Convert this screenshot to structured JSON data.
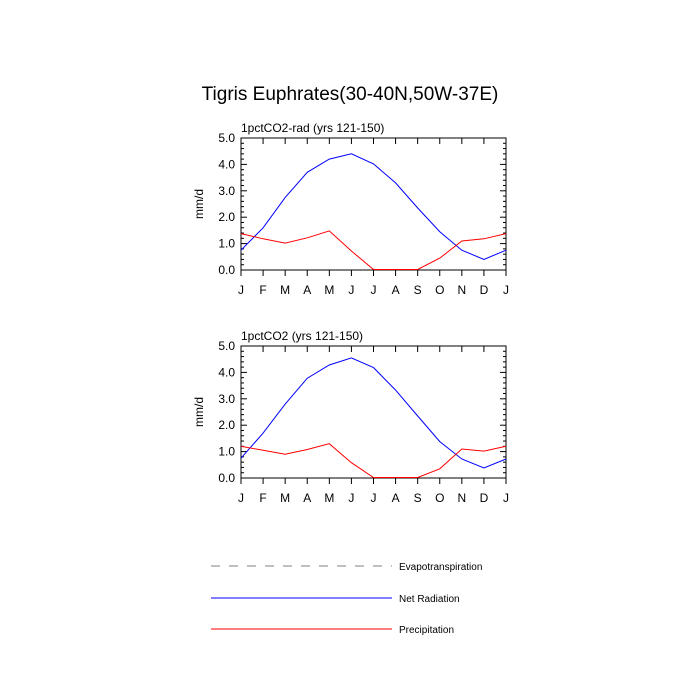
{
  "title": "Tigris Euphrates(30-40N,50W-37E)",
  "colors": {
    "net_radiation": "#0000ff",
    "precipitation": "#ff0000",
    "evapotranspiration": "#808080"
  },
  "legend": [
    {
      "label": "Evapotranspiration",
      "color": "#808080",
      "dash": true
    },
    {
      "label": "Net Radiation",
      "color": "#0000ff",
      "dash": false
    },
    {
      "label": "Precipitation",
      "color": "#ff0000",
      "dash": false
    }
  ],
  "chart_data": [
    {
      "type": "line",
      "title": "1pctCO2-rad (yrs 121-150)",
      "ylabel": "mm/d",
      "xlabel": "",
      "categories": [
        "J",
        "F",
        "M",
        "A",
        "M",
        "J",
        "J",
        "A",
        "S",
        "O",
        "N",
        "D",
        "J"
      ],
      "ylim": [
        0,
        5
      ],
      "yticks": [
        "0.0",
        "1.0",
        "2.0",
        "3.0",
        "4.0",
        "5.0"
      ],
      "series": [
        {
          "name": "Net Radiation",
          "color": "#0000ff",
          "values": [
            0.75,
            1.6,
            2.75,
            3.7,
            4.2,
            4.4,
            4.02,
            3.3,
            2.35,
            1.45,
            0.75,
            0.4,
            0.75
          ]
        },
        {
          "name": "Precipitation",
          "color": "#ff0000",
          "values": [
            1.38,
            1.18,
            1.02,
            1.22,
            1.48,
            0.72,
            0.02,
            0.02,
            0.02,
            0.45,
            1.1,
            1.18,
            1.38
          ]
        }
      ]
    },
    {
      "type": "line",
      "title": "1pctCO2 (yrs 121-150)",
      "ylabel": "mm/d",
      "xlabel": "",
      "categories": [
        "J",
        "F",
        "M",
        "A",
        "M",
        "J",
        "J",
        "A",
        "S",
        "O",
        "N",
        "D",
        "J"
      ],
      "ylim": [
        0,
        5
      ],
      "yticks": [
        "0.0",
        "1.0",
        "2.0",
        "3.0",
        "4.0",
        "5.0"
      ],
      "series": [
        {
          "name": "Net Radiation",
          "color": "#0000ff",
          "values": [
            0.75,
            1.7,
            2.8,
            3.78,
            4.28,
            4.55,
            4.18,
            3.33,
            2.35,
            1.38,
            0.72,
            0.38,
            0.72
          ]
        },
        {
          "name": "Precipitation",
          "color": "#ff0000",
          "values": [
            1.2,
            1.05,
            0.9,
            1.08,
            1.3,
            0.58,
            0.02,
            0.02,
            0.02,
            0.35,
            1.1,
            1.02,
            1.2
          ]
        }
      ]
    }
  ]
}
